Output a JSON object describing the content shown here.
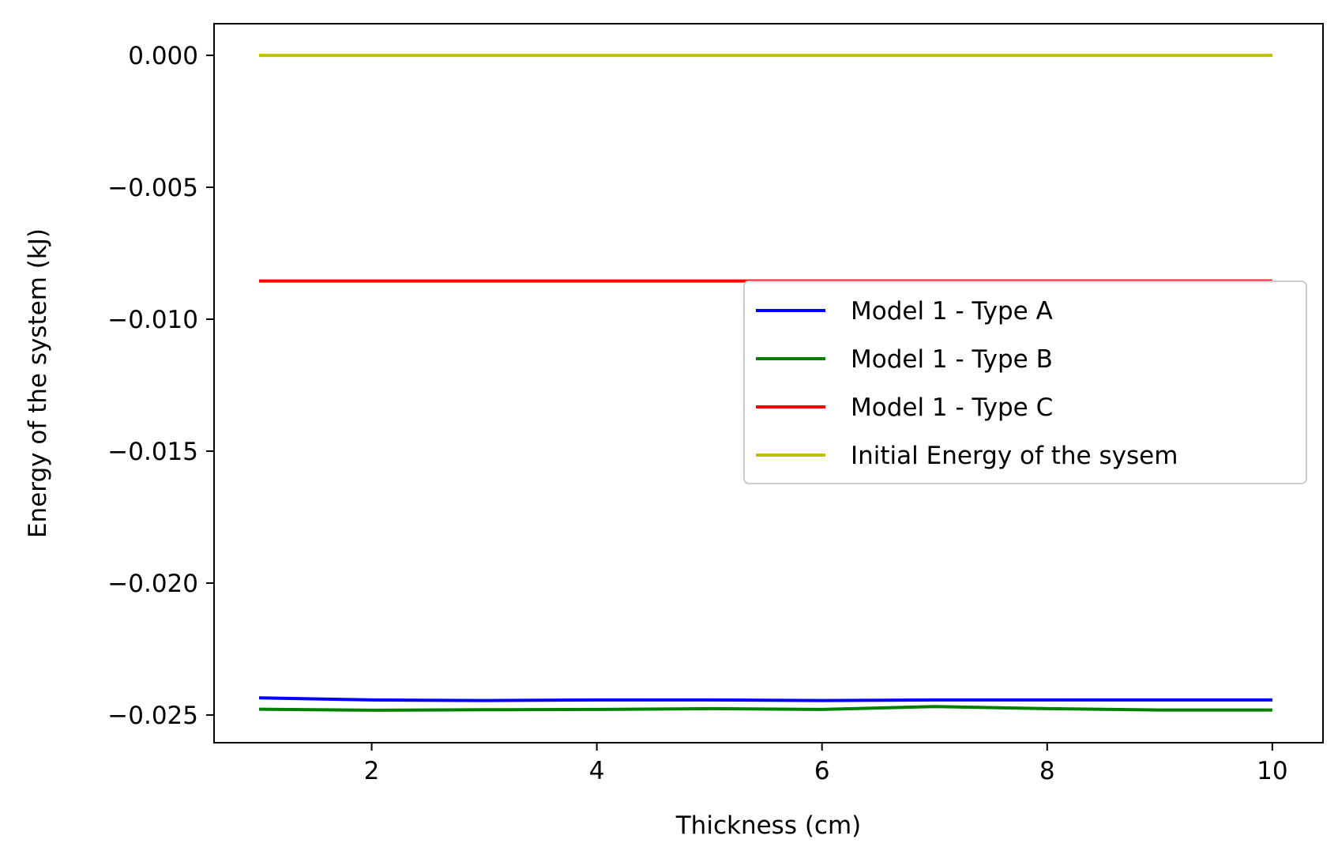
{
  "chart_data": {
    "type": "line",
    "xlabel": "Thickness (cm)",
    "ylabel": "Energy of the system (kJ)",
    "xlim": [
      0.6,
      10.45
    ],
    "ylim": [
      -0.02605,
      0.0012
    ],
    "xticks": [
      2,
      4,
      6,
      8,
      10
    ],
    "xtick_labels": [
      "2",
      "4",
      "6",
      "8",
      "10"
    ],
    "yticks": [
      0.0,
      -0.005,
      -0.01,
      -0.015,
      -0.02,
      -0.025
    ],
    "ytick_labels": [
      "0.000",
      "−0.005",
      "−0.010",
      "−0.015",
      "−0.020",
      "−0.025"
    ],
    "grid": false,
    "legend_position": "center-right",
    "x": [
      1,
      2,
      3,
      4,
      5,
      6,
      7,
      8,
      9,
      10
    ],
    "series": [
      {
        "name": "Model 1 - Type A",
        "color": "#0000ff",
        "values": [
          -0.02435,
          -0.02443,
          -0.02445,
          -0.02443,
          -0.02443,
          -0.02445,
          -0.02443,
          -0.02443,
          -0.02443,
          -0.02443
        ]
      },
      {
        "name": "Model 1 - Type B",
        "color": "#008000",
        "values": [
          -0.02478,
          -0.02482,
          -0.0248,
          -0.02479,
          -0.02476,
          -0.02479,
          -0.02468,
          -0.02476,
          -0.02481,
          -0.02481
        ]
      },
      {
        "name": "Model 1 - Type C",
        "color": "#ff0000",
        "values": [
          -0.00855,
          -0.00855,
          -0.00855,
          -0.00855,
          -0.00855,
          -0.00855,
          -0.00855,
          -0.00855,
          -0.00855,
          -0.00855
        ]
      },
      {
        "name": "Initial Energy of the sysem",
        "color": "#bfbf00",
        "values": [
          0.0,
          0.0,
          0.0,
          0.0,
          0.0,
          0.0,
          0.0,
          0.0,
          0.0,
          0.0
        ]
      }
    ]
  }
}
